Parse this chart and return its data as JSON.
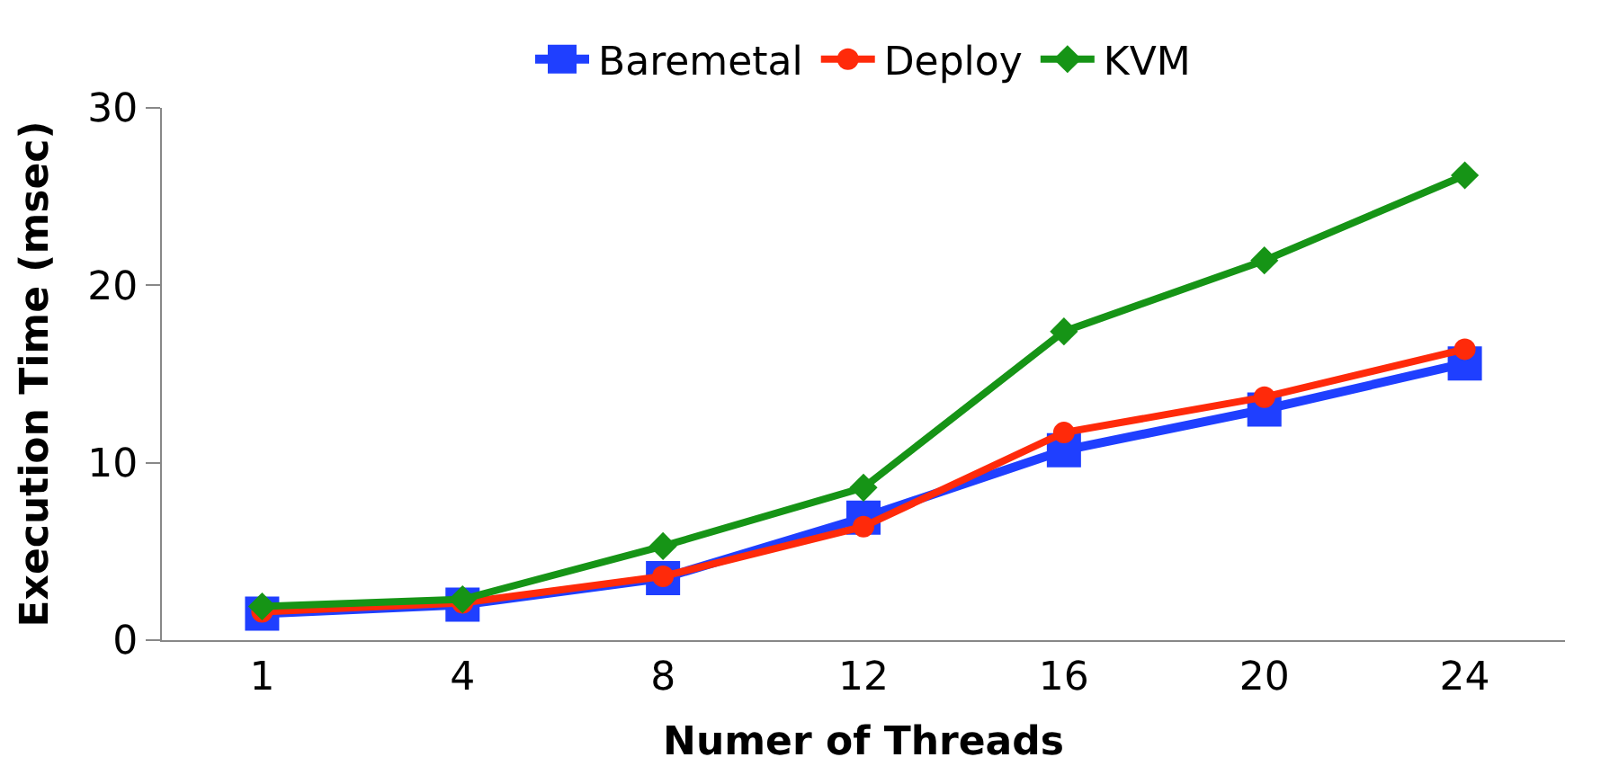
{
  "chart_data": {
    "type": "line",
    "xlabel": "Numer of Threads",
    "ylabel": "Execution Time (msec)",
    "categories": [
      "1",
      "4",
      "8",
      "12",
      "16",
      "20",
      "24"
    ],
    "series": [
      {
        "name": "Baremetal",
        "color": "#1f3fff",
        "marker": "square",
        "values": [
          1.5,
          2.0,
          3.5,
          6.9,
          10.7,
          13.0,
          15.6
        ]
      },
      {
        "name": "Deploy",
        "color": "#ff2a0a",
        "marker": "circle",
        "values": [
          1.6,
          2.1,
          3.6,
          6.4,
          11.7,
          13.7,
          16.4
        ]
      },
      {
        "name": "KVM",
        "color": "#169416",
        "marker": "diamond",
        "values": [
          1.9,
          2.3,
          5.3,
          8.6,
          17.4,
          21.4,
          26.2
        ]
      }
    ],
    "ylim": [
      0,
      30
    ],
    "yticks": [
      0,
      10,
      20,
      30
    ],
    "legend": "top"
  }
}
